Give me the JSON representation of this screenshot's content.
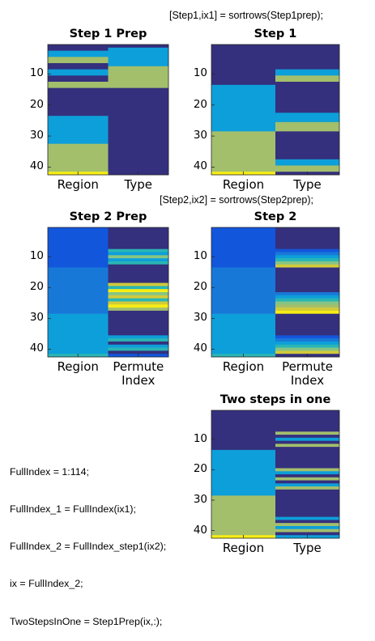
{
  "annotations": {
    "code1": "[Step1,ix1] = sortrows(Step1prep);",
    "code2": "[Step2,ix2] = sortrows(Step2prep);",
    "code3": [
      "FullIndex = 1:114;",
      "FullIndex_1 = FullIndex(ix1);",
      "FullIndex_2 = FullIndex_step1(ix2);",
      "ix = FullIndex_2;",
      "TwoStepsInOne = Step1Prep(ix,:);"
    ]
  },
  "colors": {
    "navy": "#34307d",
    "blue1": "#1256dc",
    "blue2": "#1878d8",
    "cyan": "#0d9fd9",
    "teal": "#2ab5b5",
    "green": "#86c484",
    "olive": "#a3bf6c",
    "lime": "#d2ca3a",
    "yellow": "#f7ed14"
  },
  "chart_data": [
    {
      "type": "heatmap",
      "title": "Step 1 Prep",
      "categories": [
        "Region",
        "Type"
      ],
      "yticks": [
        10,
        20,
        30,
        40
      ],
      "ylim": [
        0.5,
        42.5
      ],
      "columns": [
        [
          [
            1,
            2,
            "navy"
          ],
          [
            3,
            4,
            "cyan"
          ],
          [
            5,
            6,
            "olive"
          ],
          [
            7,
            8,
            "navy"
          ],
          [
            9,
            10,
            "cyan"
          ],
          [
            11,
            12,
            "navy"
          ],
          [
            13,
            14,
            "olive"
          ],
          [
            15,
            23,
            "navy"
          ],
          [
            24,
            32,
            "cyan"
          ],
          [
            33,
            41,
            "olive"
          ],
          [
            42,
            42,
            "yellow"
          ]
        ],
        [
          [
            1,
            1,
            "navy"
          ],
          [
            2,
            7,
            "cyan"
          ],
          [
            8,
            14,
            "olive"
          ],
          [
            15,
            42,
            "navy"
          ]
        ]
      ]
    },
    {
      "type": "heatmap",
      "title": "Step 1",
      "categories": [
        "Region",
        "Type"
      ],
      "yticks": [
        10,
        20,
        30,
        40
      ],
      "ylim": [
        0.5,
        42.5
      ],
      "columns": [
        [
          [
            1,
            13,
            "navy"
          ],
          [
            14,
            28,
            "cyan"
          ],
          [
            29,
            41,
            "olive"
          ],
          [
            42,
            42,
            "yellow"
          ]
        ],
        [
          [
            1,
            8,
            "navy"
          ],
          [
            9,
            10,
            "cyan"
          ],
          [
            11,
            12,
            "olive"
          ],
          [
            13,
            22,
            "navy"
          ],
          [
            23,
            25,
            "cyan"
          ],
          [
            26,
            28,
            "olive"
          ],
          [
            29,
            37,
            "navy"
          ],
          [
            38,
            39,
            "cyan"
          ],
          [
            40,
            41,
            "olive"
          ],
          [
            42,
            42,
            "navy"
          ]
        ]
      ]
    },
    {
      "type": "heatmap",
      "title": "Step 2 Prep",
      "categories": [
        "Region",
        "Permute\nIndex"
      ],
      "yticks": [
        10,
        20,
        30,
        40
      ],
      "ylim": [
        0.5,
        42.5
      ],
      "columns": [
        [
          [
            1,
            13,
            "blue1"
          ],
          [
            14,
            28,
            "blue2"
          ],
          [
            29,
            41,
            "cyan"
          ],
          [
            42,
            42,
            "teal"
          ]
        ],
        [
          [
            1,
            7,
            "navy"
          ],
          [
            8,
            8,
            "teal"
          ],
          [
            9,
            9,
            "cyan"
          ],
          [
            10,
            10,
            "green"
          ],
          [
            11,
            11,
            "cyan"
          ],
          [
            12,
            12,
            "teal"
          ],
          [
            13,
            18,
            "navy"
          ],
          [
            19,
            19,
            "lime"
          ],
          [
            20,
            20,
            "teal"
          ],
          [
            21,
            21,
            "yellow"
          ],
          [
            22,
            22,
            "green"
          ],
          [
            23,
            23,
            "lime"
          ],
          [
            24,
            24,
            "teal"
          ],
          [
            25,
            25,
            "lime"
          ],
          [
            26,
            26,
            "yellow"
          ],
          [
            27,
            27,
            "olive"
          ],
          [
            28,
            35,
            "navy"
          ],
          [
            36,
            36,
            "cyan"
          ],
          [
            37,
            37,
            "teal"
          ],
          [
            38,
            38,
            "navy"
          ],
          [
            39,
            39,
            "cyan"
          ],
          [
            40,
            40,
            "teal"
          ],
          [
            41,
            41,
            "navy"
          ],
          [
            42,
            42,
            "blue1"
          ]
        ]
      ]
    },
    {
      "type": "heatmap",
      "title": "Step 2",
      "categories": [
        "Region",
        "Permute\nIndex"
      ],
      "yticks": [
        10,
        20,
        30,
        40
      ],
      "ylim": [
        0.5,
        42.5
      ],
      "columns": [
        [
          [
            1,
            13,
            "blue1"
          ],
          [
            14,
            28,
            "blue2"
          ],
          [
            29,
            41,
            "cyan"
          ],
          [
            42,
            42,
            "teal"
          ]
        ],
        [
          [
            1,
            7,
            "navy"
          ],
          [
            8,
            8,
            "blue1"
          ],
          [
            9,
            9,
            "blue2"
          ],
          [
            10,
            10,
            "cyan"
          ],
          [
            11,
            11,
            "teal"
          ],
          [
            12,
            12,
            "green"
          ],
          [
            13,
            13,
            "lime"
          ],
          [
            14,
            21,
            "navy"
          ],
          [
            22,
            22,
            "blue2"
          ],
          [
            23,
            23,
            "cyan"
          ],
          [
            24,
            24,
            "teal"
          ],
          [
            25,
            25,
            "green"
          ],
          [
            26,
            26,
            "olive"
          ],
          [
            27,
            27,
            "lime"
          ],
          [
            28,
            28,
            "yellow"
          ],
          [
            29,
            35,
            "navy"
          ],
          [
            36,
            36,
            "blue1"
          ],
          [
            37,
            37,
            "blue2"
          ],
          [
            38,
            38,
            "cyan"
          ],
          [
            39,
            39,
            "teal"
          ],
          [
            40,
            40,
            "green"
          ],
          [
            41,
            41,
            "lime"
          ],
          [
            42,
            42,
            "navy"
          ]
        ]
      ]
    },
    {
      "type": "heatmap",
      "title": "Two steps in one",
      "categories": [
        "Region",
        "Type"
      ],
      "yticks": [
        10,
        20,
        30,
        40
      ],
      "ylim": [
        0.5,
        42.5
      ],
      "columns": [
        [
          [
            1,
            13,
            "navy"
          ],
          [
            14,
            28,
            "cyan"
          ],
          [
            29,
            41,
            "olive"
          ],
          [
            42,
            42,
            "yellow"
          ]
        ],
        [
          [
            1,
            7,
            "navy"
          ],
          [
            8,
            8,
            "olive"
          ],
          [
            9,
            9,
            "navy"
          ],
          [
            10,
            10,
            "cyan"
          ],
          [
            11,
            11,
            "navy"
          ],
          [
            12,
            12,
            "olive"
          ],
          [
            13,
            19,
            "navy"
          ],
          [
            20,
            20,
            "olive"
          ],
          [
            21,
            21,
            "cyan"
          ],
          [
            22,
            22,
            "navy"
          ],
          [
            23,
            23,
            "olive"
          ],
          [
            24,
            24,
            "navy"
          ],
          [
            25,
            25,
            "cyan"
          ],
          [
            26,
            26,
            "olive"
          ],
          [
            27,
            35,
            "navy"
          ],
          [
            36,
            36,
            "cyan"
          ],
          [
            37,
            37,
            "navy"
          ],
          [
            38,
            38,
            "olive"
          ],
          [
            39,
            39,
            "cyan"
          ],
          [
            40,
            40,
            "olive"
          ],
          [
            41,
            41,
            "navy"
          ],
          [
            42,
            42,
            "cyan"
          ]
        ]
      ]
    }
  ]
}
